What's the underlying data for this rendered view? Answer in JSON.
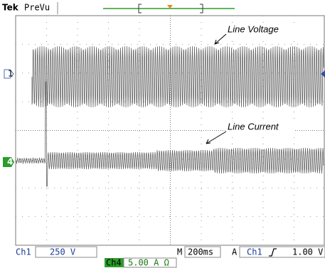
{
  "header": {
    "brand": "Tek",
    "mode": "PreVu"
  },
  "annotations": {
    "voltage": "Line Voltage",
    "current": "Line Current"
  },
  "markers": {
    "ch1": "1",
    "ch4": "4"
  },
  "status": {
    "ch1_label": "Ch1",
    "ch1_scale": "250 V",
    "time_prefix": "M",
    "timebase": "200ms",
    "trigger_prefix": "A",
    "trigger_source": "Ch1",
    "trigger_level": "1.00 V",
    "ch4_label": "Ch4",
    "ch4_scale": "5.00 A Ω"
  }
}
